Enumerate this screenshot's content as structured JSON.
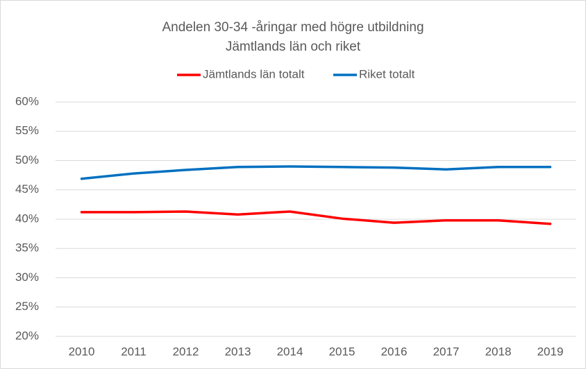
{
  "chart_data": {
    "type": "line",
    "title": "Andelen 30-34 -åringar med högre utbildning",
    "subtitle": "Jämtlands län och riket",
    "categories": [
      "2010",
      "2011",
      "2012",
      "2013",
      "2014",
      "2015",
      "2016",
      "2017",
      "2018",
      "2019"
    ],
    "series": [
      {
        "name": "Jämtlands län totalt",
        "color": "#ff0000",
        "values": [
          41.2,
          41.2,
          41.3,
          40.8,
          41.3,
          40.1,
          39.4,
          39.8,
          39.8,
          39.2
        ]
      },
      {
        "name": "Riket totalt",
        "color": "#0070c0",
        "values": [
          46.9,
          47.8,
          48.4,
          48.9,
          49.0,
          48.9,
          48.8,
          48.5,
          48.9,
          48.9
        ]
      }
    ],
    "ylim": [
      20,
      60
    ],
    "yticks": [
      {
        "value": 20,
        "label": "20%"
      },
      {
        "value": 25,
        "label": "25%"
      },
      {
        "value": 30,
        "label": "30%"
      },
      {
        "value": 35,
        "label": "35%"
      },
      {
        "value": 40,
        "label": "40%"
      },
      {
        "value": 45,
        "label": "45%"
      },
      {
        "value": 50,
        "label": "50%"
      },
      {
        "value": 55,
        "label": "55%"
      },
      {
        "value": 60,
        "label": "60%"
      }
    ],
    "grid": true,
    "legend": "top"
  }
}
